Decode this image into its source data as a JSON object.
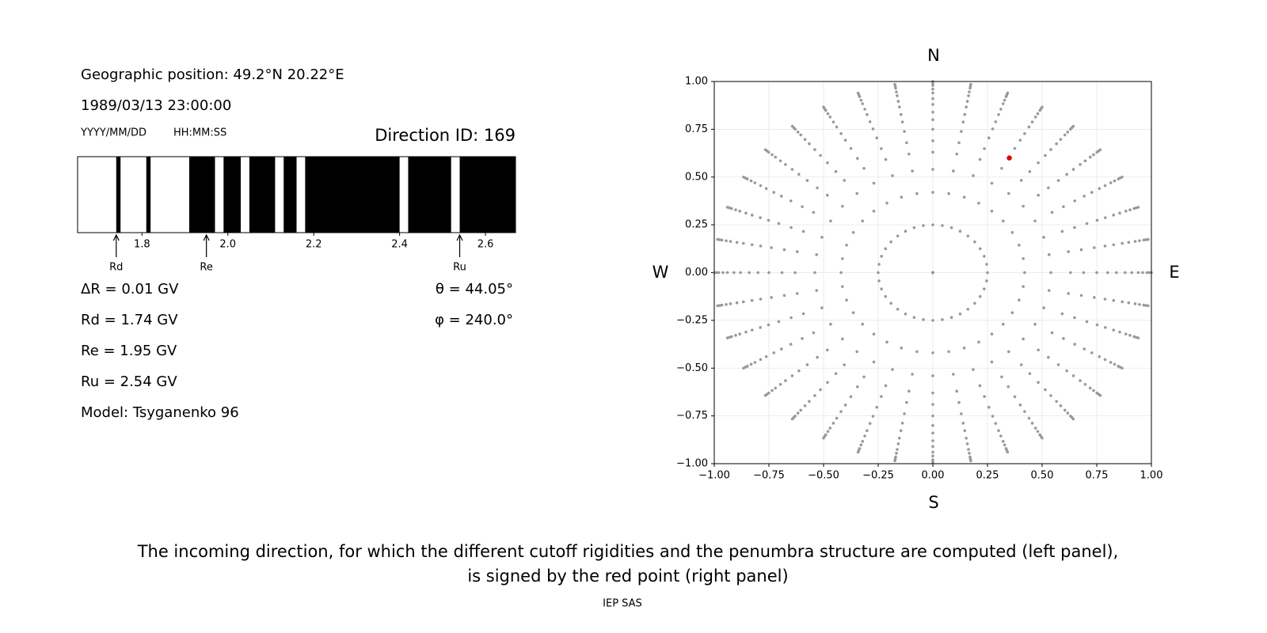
{
  "info": {
    "position": "Geographic position: 49.2°N 20.22°E",
    "datetime": "1989/03/13 23:00:00",
    "date_format": "YYYY/MM/DD",
    "time_format": "HH:MM:SS",
    "direction": "Direction ID: 169",
    "lines": [
      "ΔR = 0.01 GV",
      "Rd = 1.74 GV",
      "Re = 1.95 GV",
      "Ru = 2.54 GV",
      "Model: Tsyganenko 96"
    ],
    "angles": [
      "θ = 44.05°",
      "φ = 240.0°"
    ]
  },
  "chart_data": [
    {
      "type": "penumbra",
      "xlim": [
        1.65,
        2.67
      ],
      "xticks": [
        1.8,
        {
          "value": 2,
          "label": "2.0"
        },
        2.2,
        2.4,
        2.6
      ],
      "forbidden_color": "#000000",
      "forbidden": [
        [
          1.74,
          1.75
        ],
        [
          1.81,
          1.82
        ],
        [
          1.91,
          1.97
        ],
        [
          1.99,
          2.03
        ],
        [
          2.05,
          2.11
        ],
        [
          2.13,
          2.16
        ],
        [
          2.18,
          2.4
        ],
        [
          2.42,
          2.52
        ],
        [
          2.54,
          2.67
        ]
      ],
      "markers": [
        {
          "label": "Rd",
          "value": 1.74
        },
        {
          "label": "Re",
          "value": 1.95
        },
        {
          "label": "Ru",
          "value": 2.54
        }
      ]
    },
    {
      "type": "scatter",
      "xlim": [
        -1,
        1
      ],
      "ylim": [
        -1,
        1
      ],
      "grid": true,
      "xticks": [
        {
          "value": -1,
          "label": "−1.00"
        },
        {
          "value": -0.75,
          "label": "−0.75"
        },
        {
          "value": -0.5,
          "label": "−0.50"
        },
        {
          "value": -0.25,
          "label": "−0.25"
        },
        {
          "value": 0,
          "label": "0.00"
        },
        {
          "value": 0.25,
          "label": "0.25"
        },
        {
          "value": 0.5,
          "label": "0.50"
        },
        {
          "value": 0.75,
          "label": "0.75"
        },
        {
          "value": 1,
          "label": "1.00"
        }
      ],
      "yticks": [
        {
          "value": -1,
          "label": "−1.00"
        },
        {
          "value": -0.75,
          "label": "−0.75"
        },
        {
          "value": -0.5,
          "label": "−0.50"
        },
        {
          "value": -0.25,
          "label": "−0.25"
        },
        {
          "value": 0,
          "label": "0.00"
        },
        {
          "value": 0.25,
          "label": "0.25"
        },
        {
          "value": 0.5,
          "label": "0.50"
        },
        {
          "value": 0.75,
          "label": "0.75"
        },
        {
          "value": 1,
          "label": "1.00"
        }
      ],
      "compass": {
        "north": "N",
        "south": "S",
        "west": "W",
        "east": "E"
      },
      "directions": {
        "color": "#999999",
        "azimuths": [
          0,
          10,
          20,
          30,
          40,
          50,
          60,
          70,
          80,
          90,
          100,
          110,
          120,
          130,
          140,
          150,
          160,
          170,
          180,
          190,
          200,
          210,
          220,
          230,
          240,
          250,
          260,
          270,
          280,
          290,
          300,
          310,
          320,
          330,
          340,
          350
        ],
        "radii": [
          0,
          0.25,
          0.42,
          0.54,
          0.63,
          0.69,
          0.75,
          0.8,
          0.84,
          0.88,
          0.91,
          0.94,
          0.96,
          0.98,
          0.99,
          1
        ]
      },
      "selected": {
        "color": "#e00000",
        "x": 0.35,
        "y": 0.6
      }
    }
  ],
  "caption": [
    "The incoming direction, for which the different cutoff rigidities and the penumbra structure are computed (left panel),",
    "is signed by the red point (right panel)"
  ],
  "footer": "IEP SAS"
}
